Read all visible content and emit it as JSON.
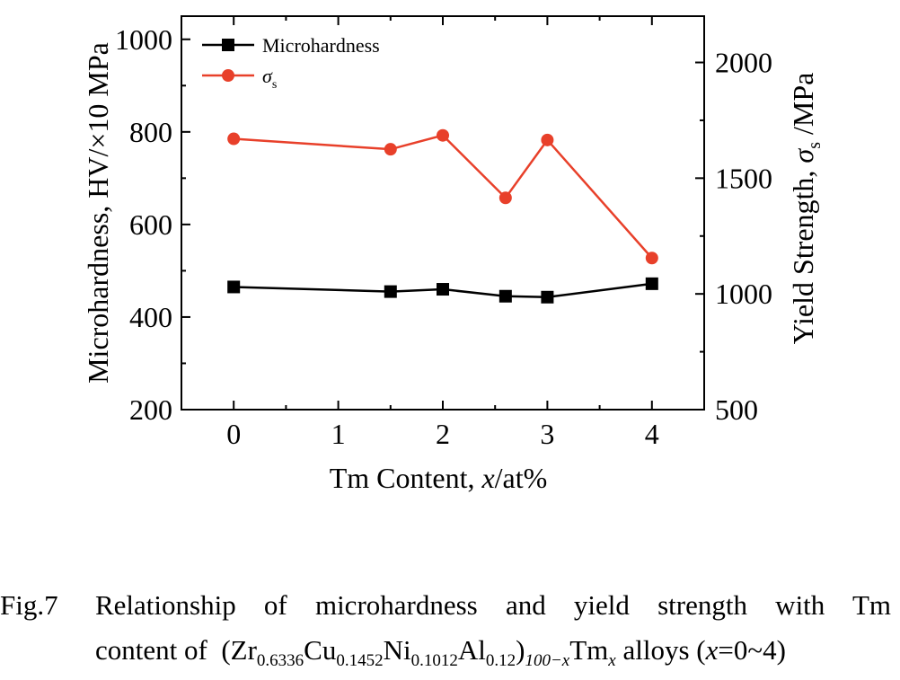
{
  "chart_data": {
    "type": "line",
    "x": [
      0,
      1.5,
      2,
      2.6,
      3,
      4
    ],
    "xlim": [
      -0.5,
      4.5
    ],
    "xticks": [
      0,
      1,
      2,
      3,
      4
    ],
    "xlabel": {
      "prefix": "Tm Content, ",
      "var": "x",
      "suffix": "/at%"
    },
    "ylabel_left": "Microhardness, HV/×10 MPa",
    "ylim_left": [
      200,
      1050
    ],
    "yticks_left": [
      200,
      400,
      600,
      800,
      1000
    ],
    "ylabel_right": {
      "prefix": "Yield Strength, ",
      "symbol": "σ",
      "sub": "s",
      "suffix": " /MPa"
    },
    "ylim_right": [
      500,
      2200
    ],
    "yticks_right": [
      500,
      1000,
      1500,
      2000
    ],
    "grid": false,
    "legend_position": "top-left",
    "series": [
      {
        "name": "Microhardness",
        "axis": "left",
        "marker": "square",
        "color": "#000000",
        "values": [
          465,
          455,
          460,
          445,
          443,
          472
        ]
      },
      {
        "name": "σ",
        "name_sub": "s",
        "axis": "right",
        "marker": "circle",
        "color": "#e8402a",
        "values": [
          1670,
          1625,
          1685,
          1415,
          1665,
          1155
        ]
      }
    ]
  },
  "caption": {
    "fig_label": "Fig.7",
    "line1": "Relationship of microhardness and yield strength with Tm",
    "line2_prefix": "content of",
    "line2_suffix": "alloys (",
    "line2_range": "=0~4)",
    "formula": {
      "Zr": "Zr",
      "Zr_sub": "0.6336",
      "Cu": "Cu",
      "Cu_sub": "0.1452",
      "Ni": "Ni",
      "Ni_sub": "0.1012",
      "Al": "Al",
      "Al_sub": "0.12",
      "outer_sub": "100−x",
      "Tm": "Tm",
      "Tm_sub": "x",
      "var": "x"
    }
  }
}
